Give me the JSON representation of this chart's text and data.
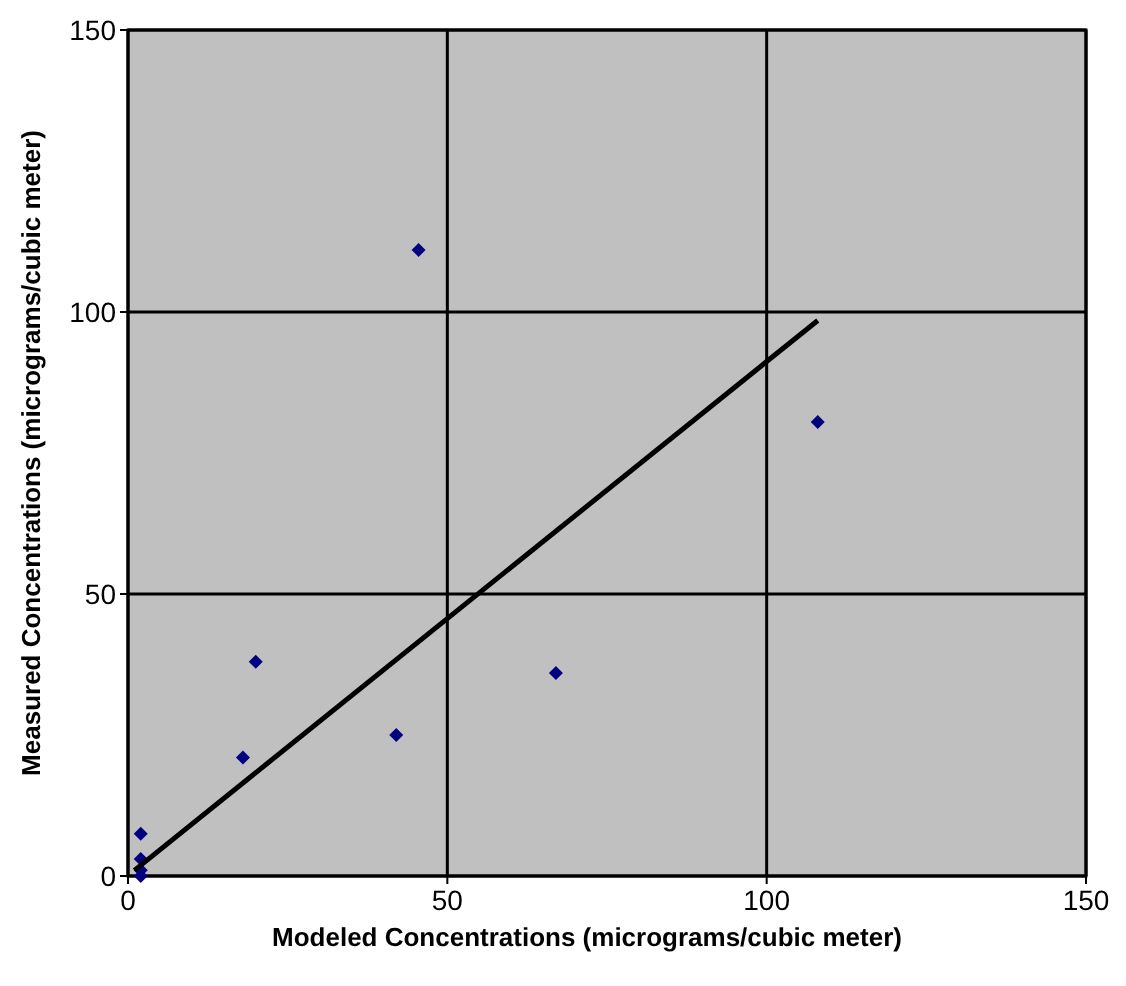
{
  "chart_data": {
    "type": "scatter",
    "xlabel": "Modeled Concentrations (micrograms/cubic meter)",
    "ylabel": "Measured Concentrations (micrograms/cubic meter)",
    "xlim": [
      0,
      150
    ],
    "ylim": [
      0,
      150
    ],
    "xticks": [
      0,
      50,
      100,
      150
    ],
    "yticks": [
      0,
      50,
      100,
      150
    ],
    "grid": true,
    "series": [
      {
        "color": "#000080",
        "marker": "diamond",
        "x": [
          2,
          2,
          2,
          2,
          18,
          20,
          42,
          45.5,
          67,
          108
        ],
        "values": [
          7.5,
          3,
          1,
          0,
          21,
          38,
          25,
          111,
          36,
          80.5
        ]
      },
      {
        "type": "line",
        "color": "#000000",
        "x": [
          1,
          108
        ],
        "values": [
          1,
          98.5
        ],
        "marker": "none",
        "line_style": "solid"
      }
    ]
  }
}
